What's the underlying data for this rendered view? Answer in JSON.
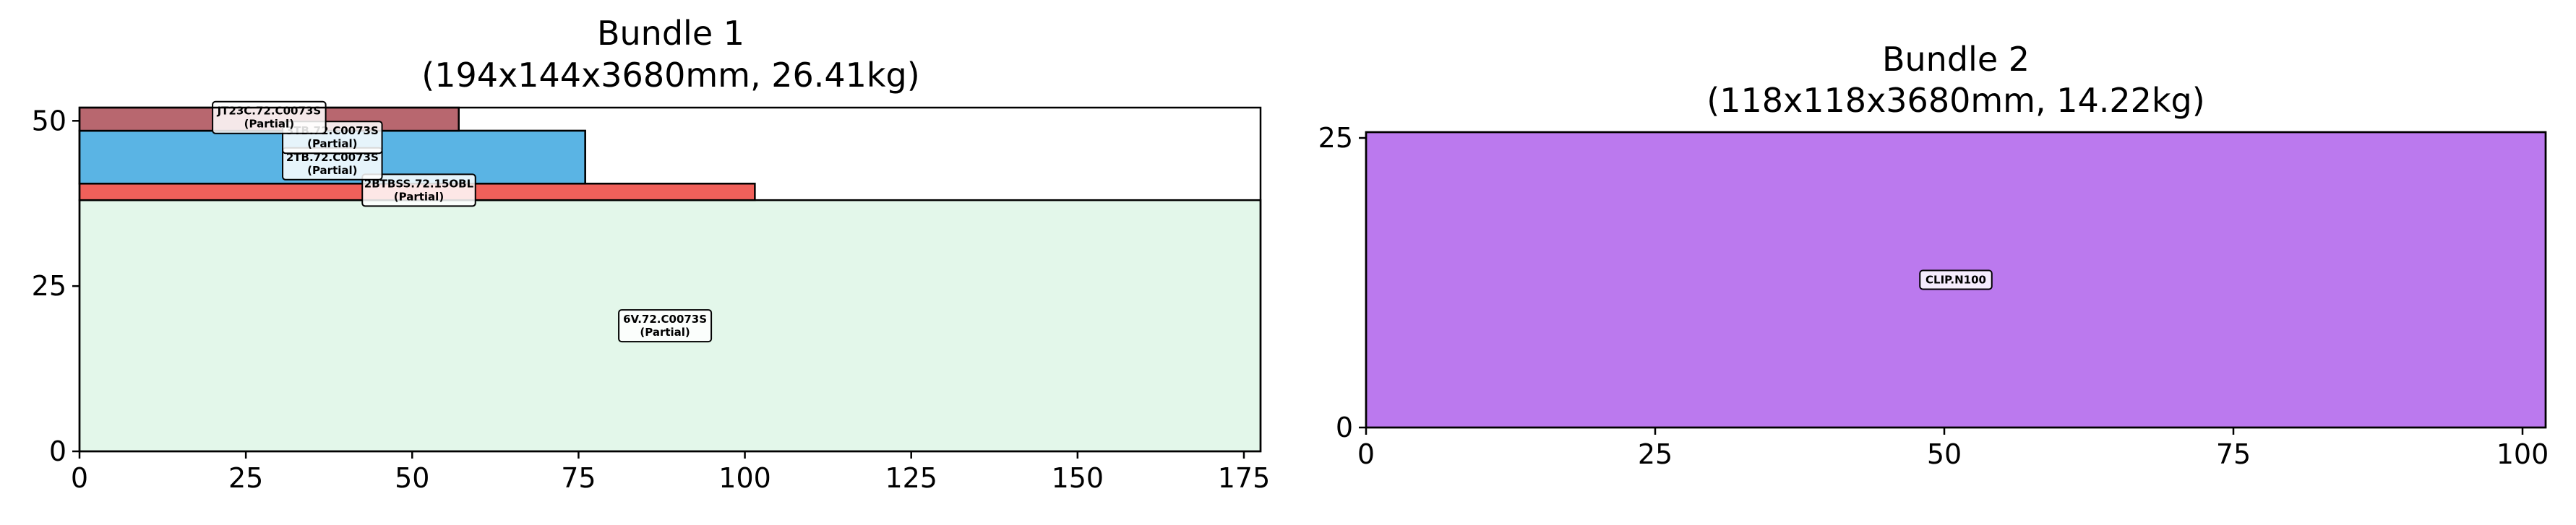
{
  "chart_data": [
    {
      "type": "bar",
      "title_line1": "Bundle 1",
      "title_line2": "(194x144x3680mm, 26.41kg)",
      "xlabel": "",
      "ylabel": "",
      "xlim": [
        0,
        177.5
      ],
      "ylim": [
        0,
        52
      ],
      "xticks": [
        0,
        25,
        50,
        75,
        100,
        125,
        150,
        175
      ],
      "yticks": [
        0,
        25,
        50
      ],
      "grid": false,
      "rects": [
        {
          "label_line1": "6V.72.C0073S",
          "label_line2": "(Partial)",
          "x0": 0,
          "x1": 177.5,
          "y0": 0,
          "y1": 38,
          "color": "#e3f7ea",
          "label_x": 88,
          "label_y": 19
        },
        {
          "label_line1": "2BTBSS.72.15OBL",
          "label_line2": "(Partial)",
          "x0": 0,
          "x1": 101.5,
          "y0": 38,
          "y1": 40.5,
          "color": "#f0605a",
          "label_x": 51,
          "label_y": 39.5
        },
        {
          "label_line1": "2TB.72.C0073S",
          "label_line2": "(Partial)",
          "x0": 0,
          "x1": 76,
          "y0": 40.5,
          "y1": 48.5,
          "color": "#5ab4e4",
          "label_x": 38,
          "label_y": 43.5
        },
        {
          "label_line1": "3TB.72.C0073S",
          "label_line2": "(Partial)",
          "x0": 0,
          "x1": 76,
          "y0": 40.5,
          "y1": 48.5,
          "color": "#5ab4e4",
          "label_x": 38,
          "label_y": 47.5
        },
        {
          "label_line1": "JT23C.72.C0073S",
          "label_line2": "(Partial)",
          "x0": 0,
          "x1": 57,
          "y0": 48.5,
          "y1": 52,
          "color": "#b8676f",
          "label_x": 28.5,
          "label_y": 50.5
        }
      ]
    },
    {
      "type": "bar",
      "title_line1": "Bundle 2",
      "title_line2": "(118x118x3680mm, 14.22kg)",
      "xlabel": "",
      "ylabel": "",
      "xlim": [
        0,
        102
      ],
      "ylim": [
        0,
        25.5
      ],
      "xticks": [
        0,
        25,
        50,
        75,
        100
      ],
      "yticks": [
        0,
        25
      ],
      "grid": false,
      "rects": [
        {
          "label_line1": "CLIP.N100",
          "label_line2": "",
          "x0": 0,
          "x1": 102,
          "y0": 0,
          "y1": 25.5,
          "color": "#bb79ee",
          "label_x": 51,
          "label_y": 12.75
        }
      ]
    }
  ]
}
